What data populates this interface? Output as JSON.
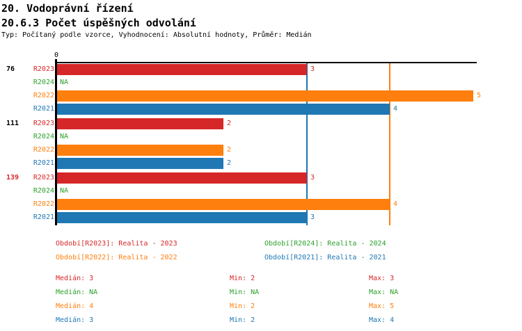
{
  "header": {
    "title": "20. Vodoprávní řízení",
    "subtitle": "20.6.3 Počet úspěšných odvolání",
    "meta": "Typ: Počítaný podle vzorce, Vyhodnocení: Absolutní hodnoty, Průměr: Medián"
  },
  "colors": {
    "series": {
      "R2023": "#d62728",
      "R2024": "#2ca02c",
      "R2022": "#ff7f0e",
      "R2021": "#1f77b4"
    },
    "text": "#000000",
    "axis": "#000000",
    "highlight_group_label": "#d62728"
  },
  "chart_data": {
    "type": "bar",
    "orientation": "horizontal",
    "x_axis": {
      "zero_label": "0",
      "min": 0,
      "max_extent": 5,
      "grid": false
    },
    "series_order": [
      "R2023",
      "R2024",
      "R2022",
      "R2021"
    ],
    "na_label": "NA",
    "groups": [
      {
        "label": "76",
        "highlight": false,
        "bars": [
          {
            "series": "R2023",
            "value": 3
          },
          {
            "series": "R2024",
            "value": "NA"
          },
          {
            "series": "R2022",
            "value": 5
          },
          {
            "series": "R2021",
            "value": 4
          }
        ]
      },
      {
        "label": "111",
        "highlight": false,
        "bars": [
          {
            "series": "R2023",
            "value": 2
          },
          {
            "series": "R2024",
            "value": "NA"
          },
          {
            "series": "R2022",
            "value": 2
          },
          {
            "series": "R2021",
            "value": 2
          }
        ]
      },
      {
        "label": "139",
        "highlight": true,
        "bars": [
          {
            "series": "R2023",
            "value": 3
          },
          {
            "series": "R2024",
            "value": "NA"
          },
          {
            "series": "R2022",
            "value": 4
          },
          {
            "series": "R2021",
            "value": 3
          }
        ]
      }
    ],
    "median_lines": [
      {
        "series": "R2021",
        "value": 3
      },
      {
        "series": "R2022",
        "value": 4
      }
    ]
  },
  "legend": {
    "items": [
      {
        "series": "R2023",
        "label": "Období[R2023]: Realita - 2023",
        "column": 0,
        "row": 0
      },
      {
        "series": "R2024",
        "label": "Období[R2024]: Realita - 2024",
        "column": 1,
        "row": 0
      },
      {
        "series": "R2022",
        "label": "Období[R2022]: Realita - 2022",
        "column": 0,
        "row": 1
      },
      {
        "series": "R2021",
        "label": "Období[R2021]: Realita - 2021",
        "column": 1,
        "row": 1
      }
    ]
  },
  "stats": {
    "rows": [
      {
        "series": "R2023",
        "median": "Medián: 3",
        "min": "Min: 2",
        "max": "Max: 3"
      },
      {
        "series": "R2024",
        "median": "Medián: NA",
        "min": "Min: NA",
        "max": "Max: NA"
      },
      {
        "series": "R2022",
        "median": "Medián: 4",
        "min": "Min: 2",
        "max": "Max: 5"
      },
      {
        "series": "R2021",
        "median": "Medián: 3",
        "min": "Min: 2",
        "max": "Max: 4"
      }
    ]
  }
}
